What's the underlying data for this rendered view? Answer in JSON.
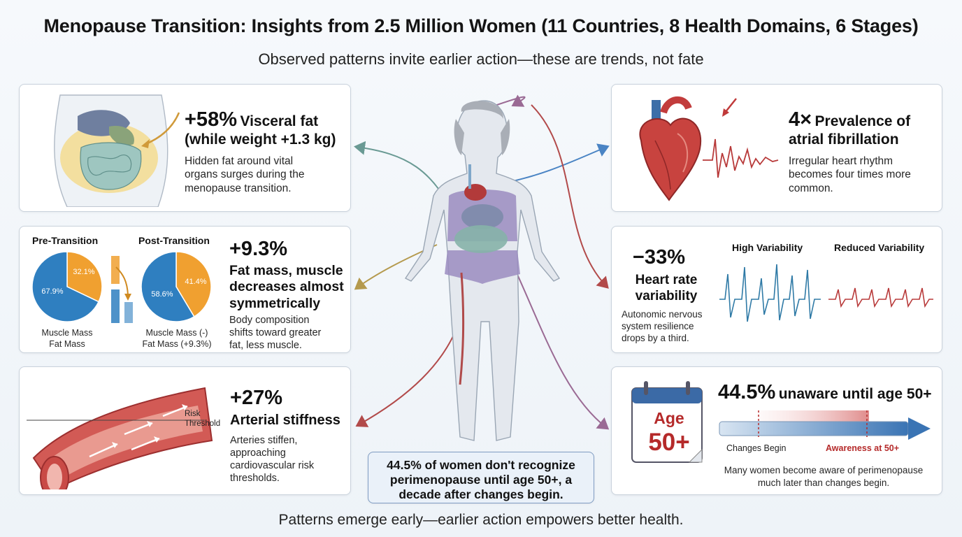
{
  "title": "Menopause Transition: Insights from 2.5 Million Women (11 Countries, 8 Health Domains, 6 Stages)",
  "subtitle": "Observed patterns invite earlier action—these are trends, not fate",
  "footer": "Patterns emerge early—earlier action empowers better health.",
  "visceral": {
    "stat": "+58%",
    "head1": "Visceral fat",
    "head2": "(while weight +1.3 kg)",
    "desc": [
      "Hidden fat around vital",
      "organs surges during the",
      "menopause transition."
    ]
  },
  "body_comp": {
    "pre_title": "Pre-Transition",
    "post_title": "Post-Transition",
    "pre_values": {
      "muscle": 67.9,
      "fat": 32.1
    },
    "post_values": {
      "muscle": 58.6,
      "fat": 41.4
    },
    "pre_muscle_label": "67.9%",
    "pre_fat_label": "32.1%",
    "post_muscle_label": "58.6%",
    "post_fat_label": "41.4%",
    "pre_legend": [
      "Muscle Mass",
      "Fat Mass"
    ],
    "post_legend": [
      "Muscle Mass (-)",
      "Fat Mass (+9.3%)"
    ],
    "stat": "+9.3%",
    "head": [
      "Fat mass, muscle",
      "decreases almost",
      "symmetrically"
    ],
    "desc": [
      "Body composition",
      "shifts toward greater",
      "fat, less muscle."
    ],
    "colors": {
      "muscle": "#2f7fc0",
      "fat": "#f0a030"
    }
  },
  "arterial": {
    "risk_label": [
      "Risk",
      "Threshold"
    ],
    "stat": "+27%",
    "head": "Arterial stiffness",
    "desc": [
      "Arteries stiffen,",
      "approaching",
      "cardiovascular risk",
      "thresholds."
    ]
  },
  "afib": {
    "stat": "4×",
    "head1": "Prevalence of",
    "head2": "atrial fibrillation",
    "desc": [
      "Irregular heart rhythm",
      "becomes four times more",
      "common."
    ]
  },
  "hrv": {
    "stat": "−33%",
    "head": [
      "Heart rate",
      "variability"
    ],
    "desc": [
      "Autonomic nervous",
      "system resilience",
      "drops by a third."
    ],
    "high_label": "High Variability",
    "reduced_label": "Reduced Variability"
  },
  "awareness": {
    "cal_top": "Age",
    "cal_bottom": "50+",
    "stat": "44.5%",
    "head": "unaware until age 50+",
    "changes_label": "Changes Begin",
    "awareness_label": "Awareness at 50+",
    "desc": [
      "Many women become aware of perimenopause",
      "much later than changes begin."
    ]
  },
  "center_box": {
    "stat": "44.5%",
    "line1_rest": "of women don't recognize",
    "line2": "perimenopause until age 50+, a",
    "line3": "decade after changes begin."
  },
  "colors": {
    "accent_red": "#b52a2a",
    "arrow_blue": "#4a84c4",
    "arrow_teal": "#6a9a94",
    "arrow_gold": "#b59a4e",
    "arrow_red": "#b24a4a",
    "arrow_purple": "#9a6a94"
  }
}
